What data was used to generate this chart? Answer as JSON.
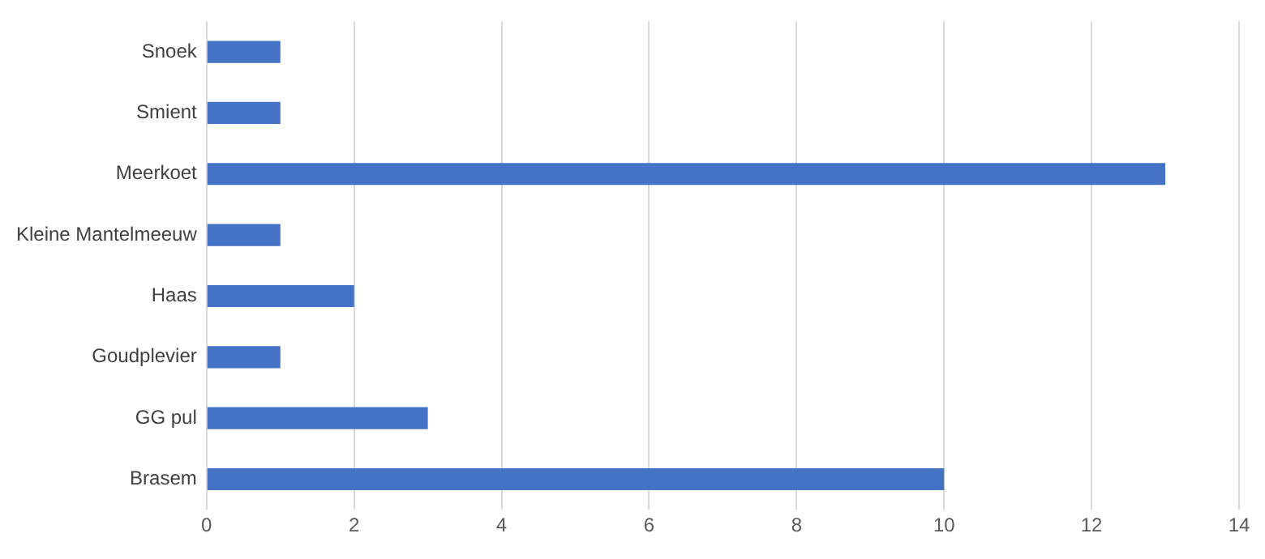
{
  "chart_data": {
    "type": "bar",
    "orientation": "horizontal",
    "categories": [
      "Snoek",
      "Smient",
      "Meerkoet",
      "Kleine Mantelmeeuw",
      "Haas",
      "Goudplevier",
      "GG pul",
      "Brasem"
    ],
    "values": [
      1,
      1,
      13,
      1,
      2,
      1,
      3,
      10
    ],
    "color": "#4472c4",
    "xlim": [
      0,
      14
    ],
    "xticks": [
      0,
      2,
      4,
      6,
      8,
      10,
      12,
      14
    ],
    "grid": "x",
    "legend": false
  }
}
